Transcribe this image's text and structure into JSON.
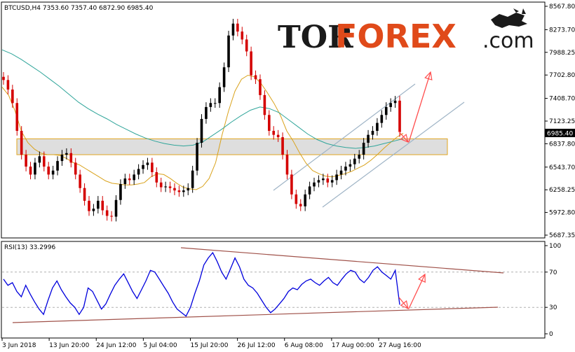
{
  "symbol_header": "BTCUSD,H4  7353.60 7357.40 6872.90 6985.40",
  "rsi_header": "RSI(13) 33.2996",
  "logo": {
    "tor": "TOR",
    "forex": "FOREX",
    "com": ".com"
  },
  "colors": {
    "bull_candle": "#000000",
    "bear_candle": "#d40000",
    "ma_fast": "#d9a21b",
    "ma_slow": "#2fa59a",
    "zone_fill": "#d8d8d8",
    "zone_border": "#e0a51f",
    "channel": "#9fb4c6",
    "arrow": "#ff4d4d",
    "rsi_line": "#0000dd",
    "rsi_trend": "#a0524a",
    "logo_accent": "#e04a1a"
  },
  "chart_data": [
    {
      "type": "line",
      "title": "BTCUSD,H4",
      "ohlc_last": {
        "open": 7353.6,
        "high": 7357.4,
        "low": 6872.9,
        "close": 6985.4
      },
      "current_price_label": "6985.40",
      "y_ticks": [
        "8567.80",
        "8273.70",
        "7988.25",
        "7702.80",
        "7408.70",
        "7123.25",
        "6837.80",
        "6543.70",
        "6258.25",
        "5972.80",
        "5687.35"
      ],
      "ylim": [
        5687.35,
        8567.8
      ],
      "x_ticks": [
        "3 Jun 2018",
        "13 Jun 20:00",
        "24 Jun 12:00",
        "5 Jul 04:00",
        "15 Jul 20:00",
        "26 Jul 12:00",
        "6 Aug 08:00",
        "17 Aug 00:00",
        "27 Aug 16:00"
      ],
      "series": [
        {
          "name": "price",
          "style": "candles",
          "values": [
            7640,
            7520,
            7350,
            7000,
            6700,
            6550,
            6450,
            6600,
            6680,
            6550,
            6450,
            6500,
            6620,
            6700,
            6720,
            6600,
            6450,
            6280,
            6120,
            5990,
            6020,
            6120,
            6000,
            5930,
            5920,
            6130,
            6330,
            6400,
            6380,
            6450,
            6520,
            6570,
            6600,
            6480,
            6350,
            6290,
            6300,
            6280,
            6250,
            6230,
            6250,
            6280,
            6500,
            6850,
            7150,
            7300,
            7350,
            7350,
            7550,
            7800,
            8200,
            8350,
            8250,
            8150,
            8000,
            7700,
            7650,
            7450,
            7200,
            7000,
            6950,
            6920,
            6700,
            6450,
            6200,
            6080,
            6050,
            6200,
            6300,
            6350,
            6380,
            6400,
            6350,
            6380,
            6450,
            6500,
            6550,
            6580,
            6650,
            6700,
            6850,
            6950,
            7000,
            7100,
            7200,
            7300,
            7350,
            7380,
            6985
          ]
        },
        {
          "name": "moving average (fast)",
          "values": [
            7550,
            7450,
            7250,
            6990,
            6850,
            6770,
            6720,
            6700,
            6700,
            6690,
            6650,
            6600,
            6570,
            6520,
            6470,
            6420,
            6370,
            6340,
            6330,
            6320,
            6320,
            6330,
            6350,
            6420,
            6460,
            6450,
            6400,
            6340,
            6290,
            6270,
            6260,
            6300,
            6400,
            6600,
            6950,
            7250,
            7500,
            7650,
            7700,
            7680,
            7600,
            7480,
            7350,
            7200,
            7000,
            6870,
            6720,
            6590,
            6500,
            6460,
            6430,
            6420,
            6440,
            6460,
            6490,
            6530,
            6570,
            6630,
            6700,
            6780,
            6850,
            6920,
            6970
          ]
        },
        {
          "name": "moving average (slow)",
          "values": [
            8020,
            7970,
            7900,
            7820,
            7740,
            7650,
            7560,
            7460,
            7360,
            7280,
            7210,
            7150,
            7080,
            7020,
            6960,
            6910,
            6870,
            6840,
            6820,
            6810,
            6820,
            6860,
            6940,
            7020,
            7110,
            7190,
            7260,
            7300,
            7280,
            7230,
            7140,
            7050,
            6960,
            6890,
            6840,
            6810,
            6790,
            6780,
            6790,
            6810,
            6840,
            6870,
            6900
          ]
        }
      ]
    },
    {
      "type": "line",
      "title": "RSI(13) 33.2996",
      "y_ticks": [
        "100",
        "70",
        "30",
        "0"
      ],
      "ylim": [
        0,
        100
      ],
      "levels": [
        70,
        30
      ],
      "series": [
        {
          "name": "RSI(13)",
          "values": [
            62,
            55,
            58,
            48,
            42,
            55,
            45,
            36,
            28,
            22,
            38,
            52,
            60,
            50,
            42,
            35,
            30,
            22,
            30,
            52,
            48,
            38,
            28,
            34,
            45,
            55,
            62,
            68,
            58,
            48,
            40,
            50,
            60,
            72,
            70,
            62,
            54,
            46,
            36,
            28,
            24,
            20,
            30,
            46,
            60,
            78,
            86,
            92,
            82,
            70,
            62,
            74,
            86,
            76,
            62,
            55,
            52,
            46,
            38,
            30,
            24,
            28,
            34,
            40,
            48,
            52,
            50,
            56,
            60,
            62,
            58,
            55,
            60,
            64,
            58,
            55,
            62,
            68,
            72,
            70,
            62,
            58,
            64,
            72,
            76,
            70,
            66,
            62,
            72,
            33
          ]
        }
      ]
    }
  ]
}
